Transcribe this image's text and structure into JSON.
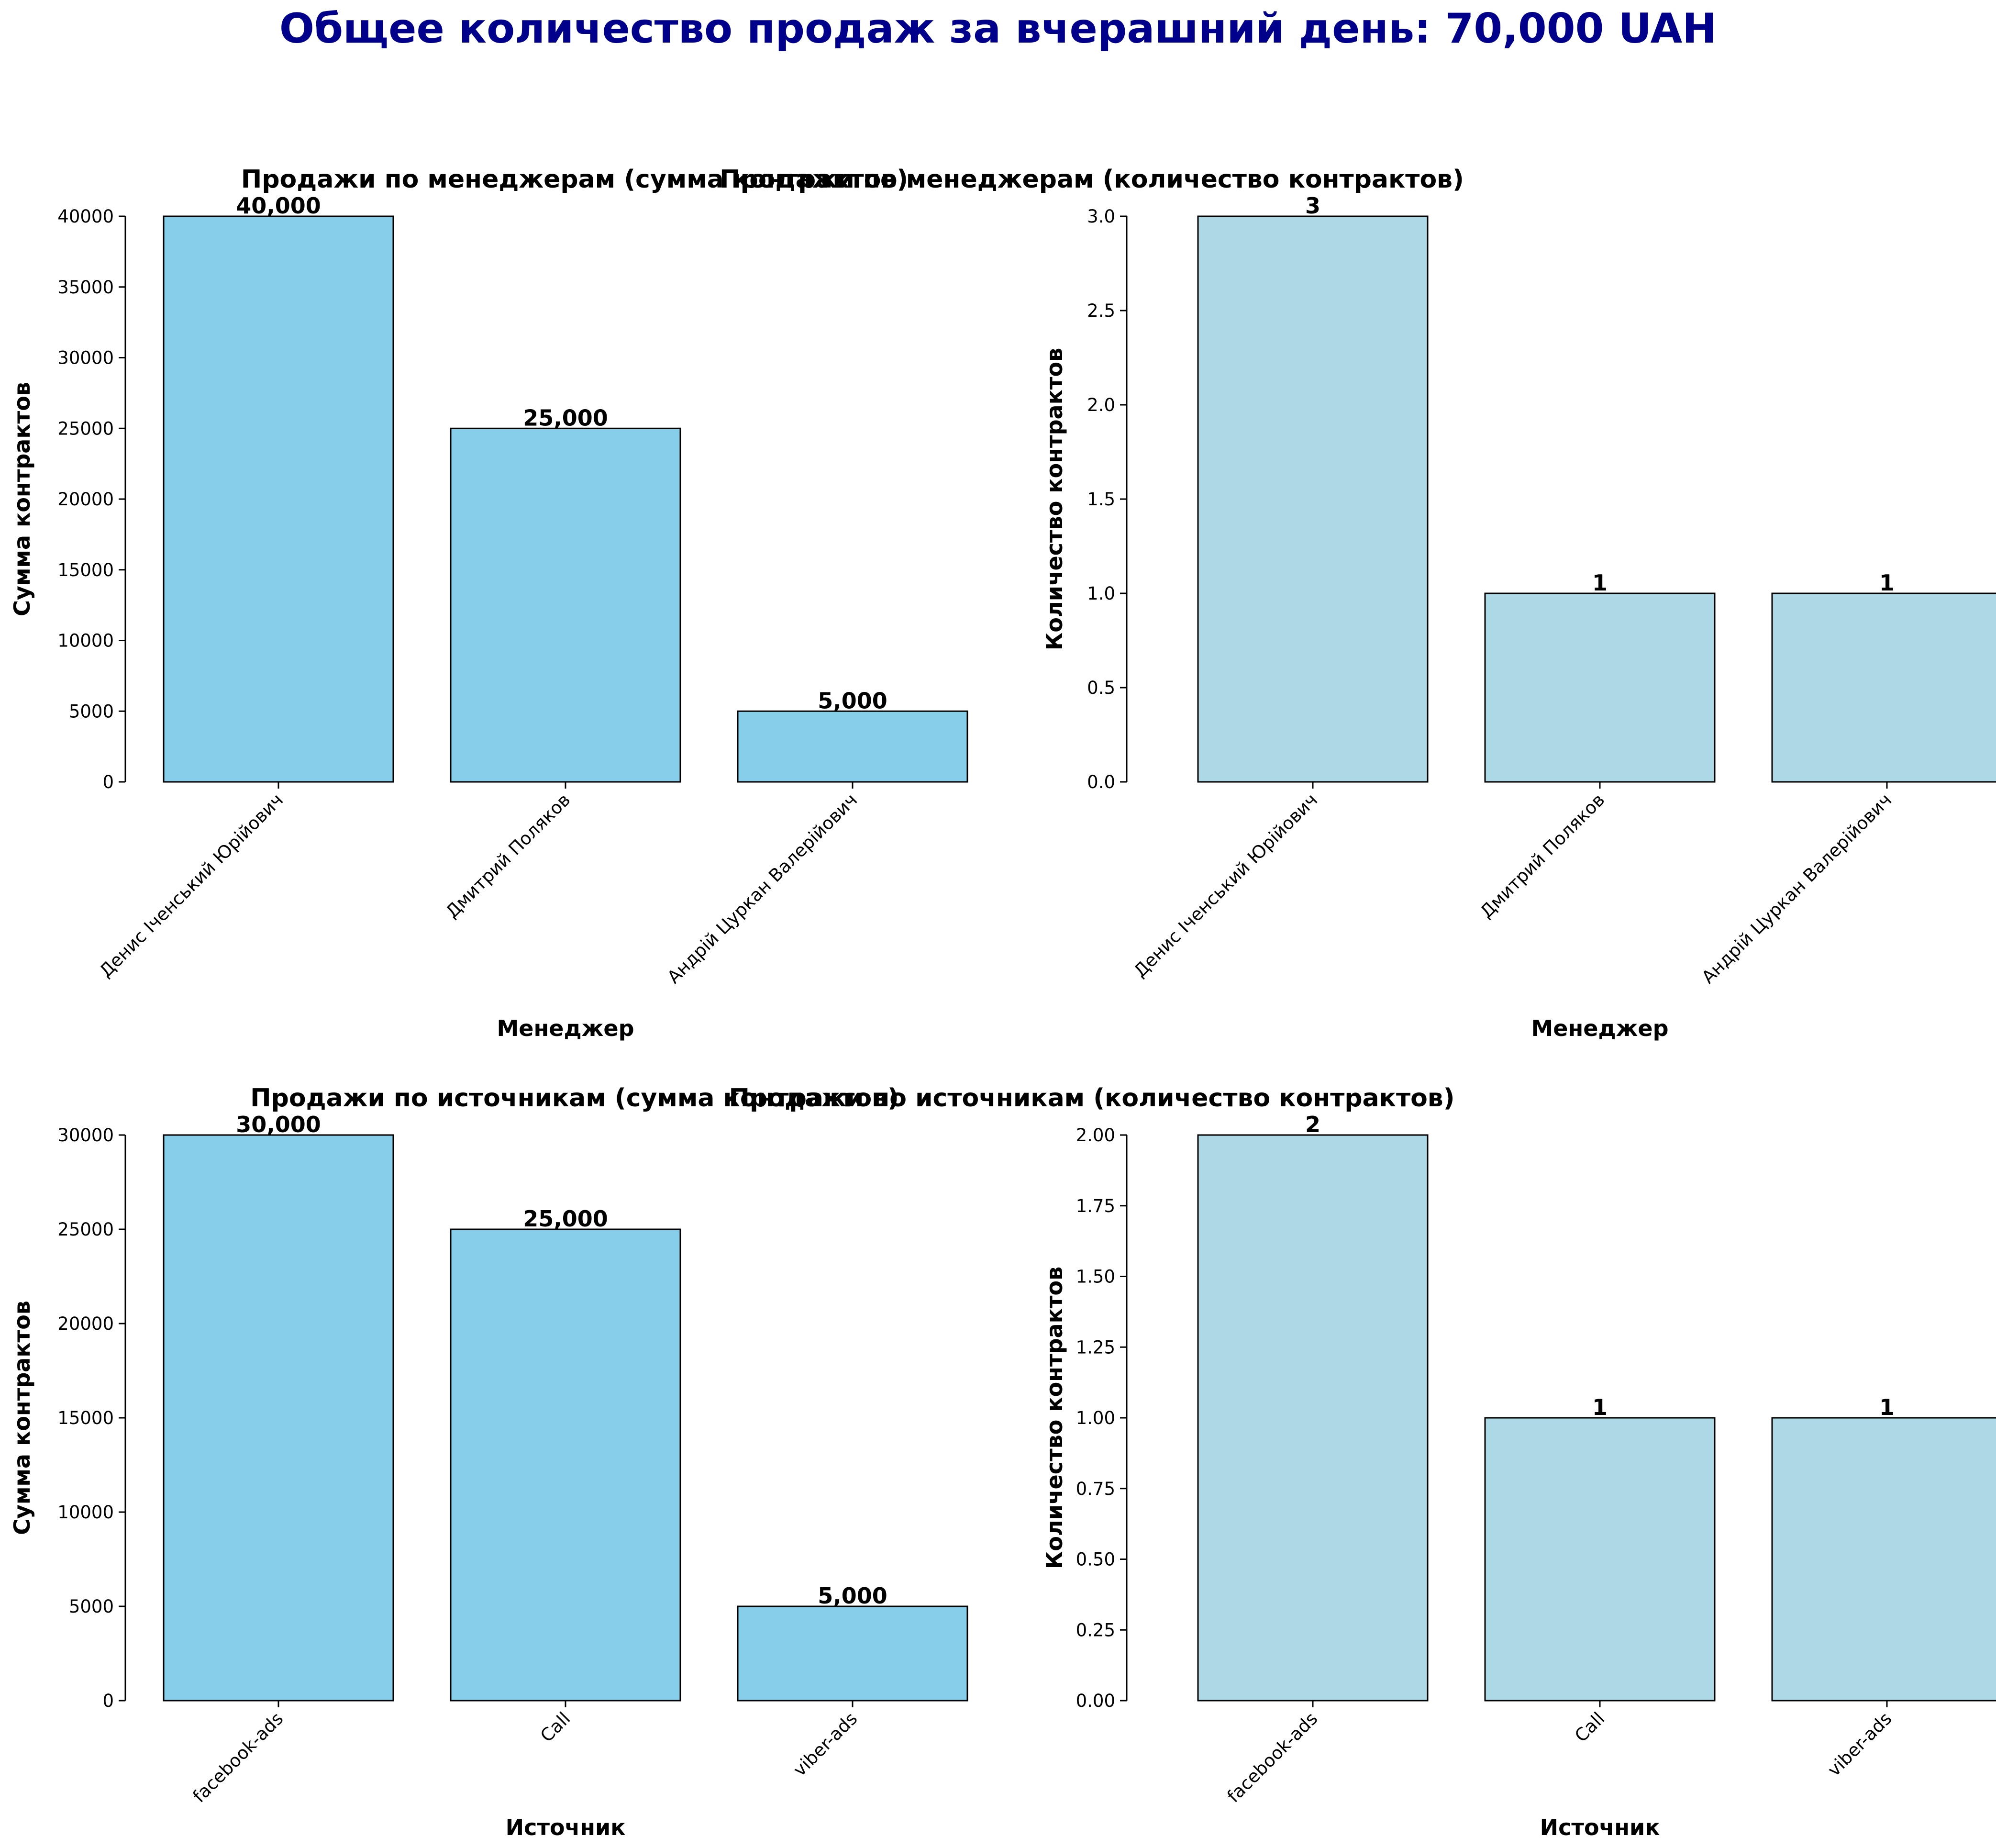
{
  "title": "Общее количество продаж за вчерашний день: 70,000 UAH",
  "colors": {
    "bar_sum": "#87ceeb",
    "bar_count": "#add8e6",
    "edge": "#000000",
    "title": "#00008b"
  },
  "chart_data": [
    {
      "type": "bar",
      "title": "Продажи по менеджерам (сумма контрактов)",
      "xlabel": "Менеджер",
      "ylabel": "Сумма контрактов",
      "categories": [
        "Денис Іченський Юрійович",
        "Дмитрий Поляков",
        "Андрій Цуркан Валерійович"
      ],
      "values": [
        40000,
        25000,
        5000
      ],
      "value_labels": [
        "40,000",
        "25,000",
        "5,000"
      ],
      "ylim": [
        0,
        40000
      ],
      "yticks": [
        0,
        5000,
        10000,
        15000,
        20000,
        25000,
        30000,
        35000,
        40000
      ],
      "ytick_labels": [
        "0",
        "5000",
        "10000",
        "15000",
        "20000",
        "25000",
        "30000",
        "35000",
        "40000"
      ],
      "color": "#87ceeb",
      "grid": false
    },
    {
      "type": "bar",
      "title": "Продажи по менеджерам (количество контрактов)",
      "xlabel": "Менеджер",
      "ylabel": "Количество контрактов",
      "categories": [
        "Денис Іченський Юрійович",
        "Дмитрий Поляков",
        "Андрій Цуркан Валерійович"
      ],
      "values": [
        3,
        1,
        1
      ],
      "value_labels": [
        "3",
        "1",
        "1"
      ],
      "ylim": [
        0,
        3
      ],
      "yticks": [
        0,
        0.5,
        1,
        1.5,
        2,
        2.5,
        3
      ],
      "ytick_labels": [
        "0.0",
        "0.5",
        "1.0",
        "1.5",
        "2.0",
        "2.5",
        "3.0"
      ],
      "color": "#add8e6",
      "grid": false
    },
    {
      "type": "bar",
      "title": "Продажи по источникам (сумма контрактов)",
      "xlabel": "Источник",
      "ylabel": "Сумма контрактов",
      "categories": [
        "facebook-ads",
        "Call",
        "viber-ads"
      ],
      "values": [
        30000,
        25000,
        5000
      ],
      "value_labels": [
        "30,000",
        "25,000",
        "5,000"
      ],
      "ylim": [
        0,
        30000
      ],
      "yticks": [
        0,
        5000,
        10000,
        15000,
        20000,
        25000,
        30000
      ],
      "ytick_labels": [
        "0",
        "5000",
        "10000",
        "15000",
        "20000",
        "25000",
        "30000"
      ],
      "color": "#87ceeb",
      "grid": false
    },
    {
      "type": "bar",
      "title": "Продажи по источникам (количество контрактов)",
      "xlabel": "Источник",
      "ylabel": "Количество контрактов",
      "categories": [
        "facebook-ads",
        "Call",
        "viber-ads"
      ],
      "values": [
        2,
        1,
        1
      ],
      "value_labels": [
        "2",
        "1",
        "1"
      ],
      "ylim": [
        0,
        2
      ],
      "yticks": [
        0,
        0.25,
        0.5,
        0.75,
        1,
        1.25,
        1.5,
        1.75,
        2
      ],
      "ytick_labels": [
        "0.00",
        "0.25",
        "0.50",
        "0.75",
        "1.00",
        "1.25",
        "1.50",
        "1.75",
        "2.00"
      ],
      "color": "#add8e6",
      "grid": false
    }
  ]
}
